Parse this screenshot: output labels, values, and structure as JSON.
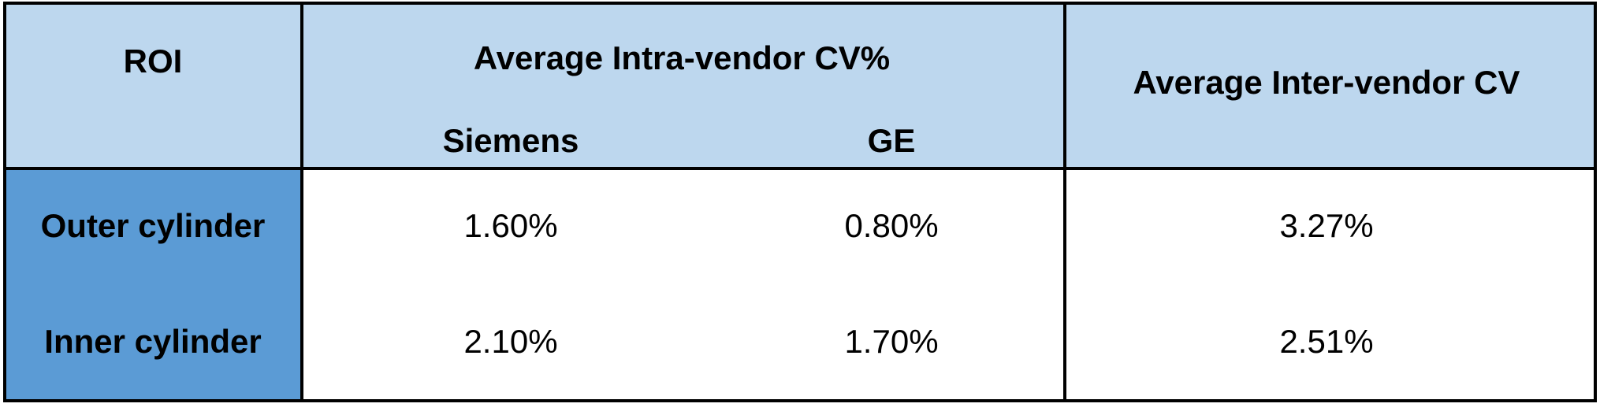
{
  "header": {
    "roi": "ROI",
    "intra_vendor": "Average Intra-vendor CV%",
    "siemens": "Siemens",
    "ge": "GE",
    "inter_vendor": "Average Inter-vendor CV"
  },
  "table": {
    "rows": [
      [
        "Outer cylinder",
        "1.60%",
        "0.80%",
        "3.27%"
      ],
      [
        "Inner cylinder",
        "2.10%",
        "1.70%",
        "2.51%"
      ]
    ]
  }
}
